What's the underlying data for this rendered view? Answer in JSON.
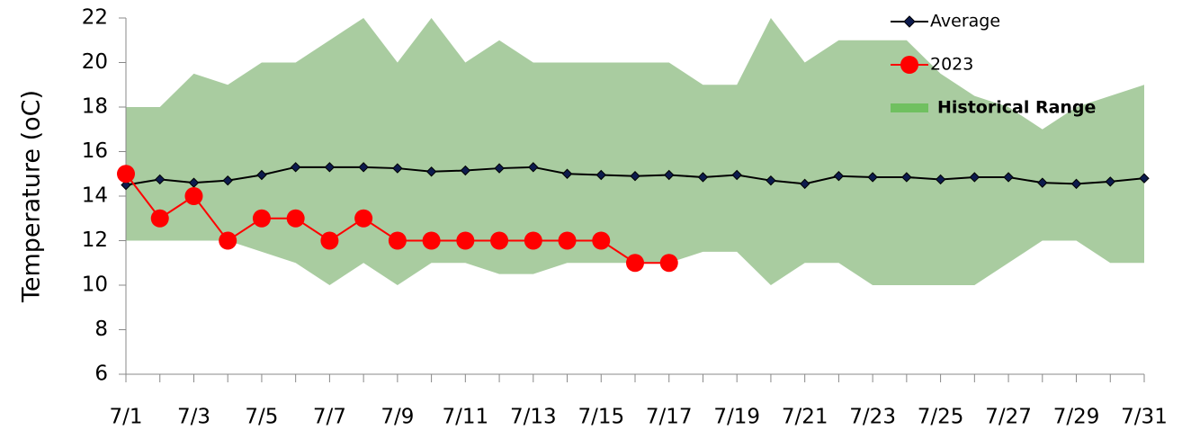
{
  "chart_data": {
    "type": "line",
    "y_label": "Temperature (oC)",
    "categories": [
      "7/1",
      null,
      "7/3",
      null,
      "7/5",
      null,
      "7/7",
      null,
      "7/9",
      null,
      "7/11",
      null,
      "7/13",
      null,
      "7/15",
      null,
      "7/17",
      null,
      "7/19",
      null,
      "7/21",
      null,
      "7/23",
      null,
      "7/25",
      null,
      "7/27",
      null,
      "7/29",
      null,
      "7/31"
    ],
    "ylim": [
      6,
      22
    ],
    "yticks": [
      6,
      8,
      10,
      12,
      14,
      16,
      18,
      20,
      22
    ],
    "grid": false,
    "legend": "top-right",
    "series": [
      {
        "name": "Average",
        "kind": "line",
        "color": "#000000",
        "marker_color": "#0d1b4d",
        "values": [
          14.5,
          14.75,
          14.6,
          14.7,
          14.95,
          15.3,
          15.3,
          15.3,
          15.25,
          15.1,
          15.15,
          15.25,
          15.3,
          15.0,
          14.95,
          14.9,
          14.95,
          14.85,
          14.95,
          14.7,
          14.55,
          14.9,
          14.85,
          14.85,
          14.75,
          14.85,
          14.85,
          14.6,
          14.55,
          14.65,
          14.8
        ]
      },
      {
        "name": "2023",
        "kind": "line",
        "color": "#ff0000",
        "marker_color": "#ff0000",
        "values": [
          15,
          13,
          14,
          12,
          13,
          13,
          12,
          13,
          12,
          12,
          12,
          12,
          12,
          12,
          12,
          11,
          11,
          null,
          null,
          null,
          null,
          null,
          null,
          null,
          null,
          null,
          null,
          null,
          null,
          null,
          null
        ]
      },
      {
        "name": "Historical Range",
        "kind": "band",
        "color": "#a9cca0",
        "upper": [
          18,
          18,
          19.5,
          19,
          20,
          20,
          21,
          22,
          20,
          22,
          20,
          21,
          20,
          20,
          20,
          20,
          20,
          19,
          19,
          22,
          20,
          21,
          21,
          21,
          19.5,
          18.5,
          18,
          17,
          18,
          18.5,
          19
        ],
        "lower": [
          12,
          12,
          12,
          12,
          11.5,
          11,
          10,
          11,
          10,
          11,
          11,
          10.5,
          10.5,
          11,
          11,
          11,
          11,
          11.5,
          11.5,
          10,
          11,
          11,
          10,
          10,
          10,
          10,
          11,
          12,
          12,
          11,
          11
        ]
      }
    ]
  }
}
